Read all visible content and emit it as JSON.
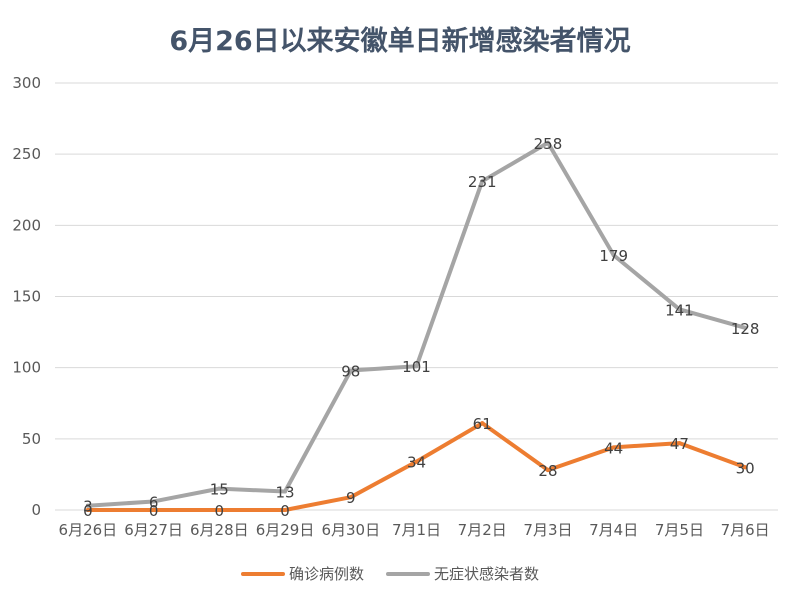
{
  "chart_data": {
    "type": "line",
    "title": "6月26日以来安徽单日新增感染者情况",
    "categories": [
      "6月26日",
      "6月27日",
      "6月28日",
      "6月29日",
      "6月30日",
      "7月1日",
      "7月2日",
      "7月3日",
      "7月4日",
      "7月5日",
      "7月6日"
    ],
    "ylim": [
      0,
      300
    ],
    "yticks": [
      0,
      50,
      100,
      150,
      200,
      250,
      300
    ],
    "grid": true,
    "legend_position": "bottom",
    "series": [
      {
        "name": "确诊病例数",
        "color": "#ed7d31",
        "values": [
          0,
          0,
          0,
          0,
          9,
          34,
          61,
          28,
          44,
          47,
          30
        ]
      },
      {
        "name": "无症状感染者数",
        "color": "#a5a5a5",
        "values": [
          3,
          6,
          15,
          13,
          98,
          101,
          231,
          258,
          179,
          141,
          128
        ]
      }
    ]
  }
}
